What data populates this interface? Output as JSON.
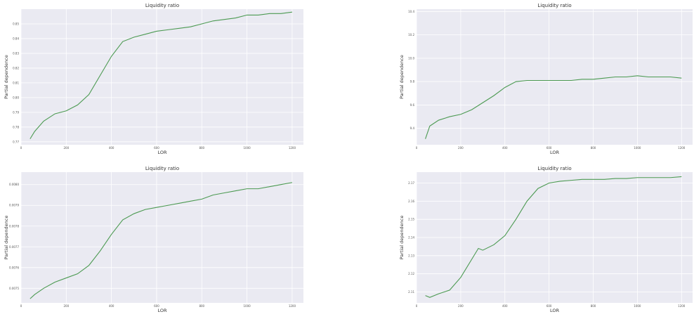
{
  "chart_data": [
    {
      "type": "line",
      "title": "Liquidity ratio",
      "xlabel": "LOR",
      "ylabel": "Partial dependence",
      "xlim": [
        0,
        1250
      ],
      "ylim": [
        0.768,
        0.86
      ],
      "xticks": [
        0,
        200,
        400,
        600,
        800,
        1000,
        1200
      ],
      "xtick_labels": [
        "0",
        "200",
        "400",
        "600",
        "800",
        "1000",
        "1200"
      ],
      "yticks": [
        0.77,
        0.78,
        0.79,
        0.8,
        0.81,
        0.82,
        0.83,
        0.84,
        0.85
      ],
      "ytick_labels": [
        "0.77",
        "0.78",
        "0.79",
        "0.80",
        "0.81",
        "0.82",
        "0.83",
        "0.84",
        "0.85"
      ],
      "grid": true,
      "line_color": "#4c9a52",
      "x": [
        40,
        60,
        100,
        150,
        200,
        250,
        300,
        350,
        400,
        450,
        500,
        550,
        600,
        650,
        700,
        750,
        800,
        850,
        900,
        950,
        1000,
        1050,
        1100,
        1150,
        1200
      ],
      "y": [
        0.772,
        0.777,
        0.784,
        0.789,
        0.791,
        0.795,
        0.802,
        0.815,
        0.828,
        0.838,
        0.841,
        0.843,
        0.845,
        0.846,
        0.847,
        0.848,
        0.85,
        0.852,
        0.853,
        0.854,
        0.856,
        0.856,
        0.857,
        0.857,
        0.858
      ]
    },
    {
      "type": "line",
      "title": "Liquidity ratio",
      "xlabel": "LOR",
      "ylabel": "Partial dependence",
      "xlim": [
        0,
        1250
      ],
      "ylim": [
        9.26,
        10.42
      ],
      "xticks": [
        0,
        200,
        400,
        600,
        800,
        1000,
        1200
      ],
      "xtick_labels": [
        "0",
        "200",
        "400",
        "600",
        "800",
        "1000",
        "1200"
      ],
      "yticks": [
        9.4,
        9.6,
        9.8,
        10.0,
        10.2,
        10.4
      ],
      "ytick_labels": [
        "9.4",
        "9.6",
        "9.8",
        "10.0",
        "10.2",
        "10.4"
      ],
      "grid": true,
      "line_color": "#4c9a52",
      "x": [
        40,
        60,
        100,
        150,
        200,
        250,
        300,
        350,
        400,
        450,
        500,
        550,
        600,
        650,
        700,
        750,
        800,
        850,
        900,
        950,
        1000,
        1050,
        1100,
        1150,
        1200
      ],
      "y": [
        9.31,
        9.42,
        9.47,
        9.5,
        9.52,
        9.56,
        9.62,
        9.68,
        9.75,
        9.8,
        9.81,
        9.81,
        9.81,
        9.81,
        9.81,
        9.82,
        9.82,
        9.83,
        9.84,
        9.84,
        9.85,
        9.84,
        9.84,
        9.84,
        9.83
      ]
    },
    {
      "type": "line",
      "title": "Liquidity ratio",
      "xlabel": "LOR",
      "ylabel": "Partial dependence",
      "xlim": [
        0,
        1250
      ],
      "ylim": [
        0.00743,
        0.00806
      ],
      "xticks": [
        0,
        200,
        400,
        600,
        800,
        1000,
        1200
      ],
      "xtick_labels": [
        "0",
        "200",
        "400",
        "600",
        "800",
        "1000",
        "1200"
      ],
      "yticks": [
        0.0075,
        0.0076,
        0.0077,
        0.0078,
        0.0079,
        0.008
      ],
      "ytick_labels": [
        "0.0075",
        "0.0076",
        "0.0077",
        "0.0078",
        "0.0079",
        "0.0080"
      ],
      "grid": true,
      "line_color": "#4c9a52",
      "x": [
        40,
        60,
        100,
        150,
        200,
        250,
        300,
        350,
        400,
        450,
        500,
        550,
        600,
        650,
        700,
        750,
        800,
        850,
        900,
        950,
        1000,
        1050,
        1100,
        1150,
        1200
      ],
      "y": [
        0.00745,
        0.00747,
        0.0075,
        0.00753,
        0.00755,
        0.00757,
        0.00761,
        0.00768,
        0.00776,
        0.00783,
        0.00786,
        0.00788,
        0.00789,
        0.0079,
        0.00791,
        0.00792,
        0.00793,
        0.00795,
        0.00796,
        0.00797,
        0.00798,
        0.00798,
        0.00799,
        0.008,
        0.00801
      ]
    },
    {
      "type": "line",
      "title": "Liquidity ratio",
      "xlabel": "LOR",
      "ylabel": "Partial dependence",
      "xlim": [
        0,
        1250
      ],
      "ylim": [
        2.104,
        2.176
      ],
      "xticks": [
        0,
        200,
        400,
        600,
        800,
        1000,
        1200
      ],
      "xtick_labels": [
        "0",
        "200",
        "400",
        "600",
        "800",
        "1000",
        "1200"
      ],
      "yticks": [
        2.11,
        2.12,
        2.13,
        2.14,
        2.15,
        2.16,
        2.17
      ],
      "ytick_labels": [
        "2.11",
        "2.12",
        "2.13",
        "2.14",
        "2.15",
        "2.16",
        "2.17"
      ],
      "grid": true,
      "line_color": "#4c9a52",
      "x": [
        40,
        60,
        100,
        150,
        200,
        250,
        280,
        300,
        350,
        400,
        450,
        500,
        550,
        600,
        650,
        700,
        750,
        800,
        850,
        900,
        950,
        1000,
        1050,
        1100,
        1150,
        1200
      ],
      "y": [
        2.108,
        2.107,
        2.109,
        2.111,
        2.118,
        2.128,
        2.134,
        2.133,
        2.136,
        2.141,
        2.15,
        2.16,
        2.167,
        2.17,
        2.171,
        2.1715,
        2.172,
        2.172,
        2.172,
        2.1725,
        2.1725,
        2.173,
        2.173,
        2.173,
        2.173,
        2.1735
      ]
    }
  ]
}
